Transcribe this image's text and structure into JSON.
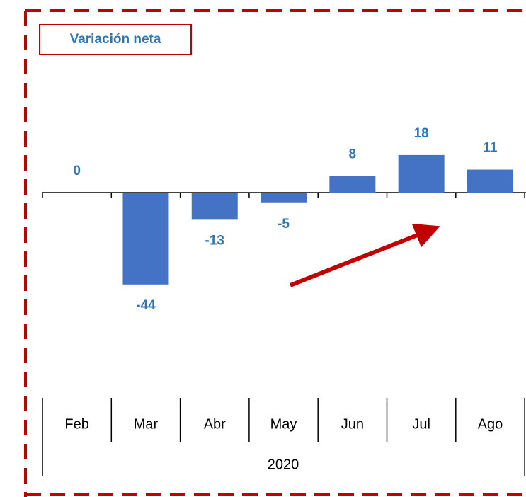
{
  "chart_data": {
    "type": "bar",
    "title": "Variación neta",
    "categories": [
      "Feb",
      "Mar",
      "Abr",
      "May",
      "Jun",
      "Jul",
      "Ago"
    ],
    "group_label": "2020",
    "values": [
      0,
      -44,
      -13,
      -5,
      8,
      18,
      11
    ],
    "color": "#4472c4",
    "ylim": [
      -60,
      60
    ]
  }
}
